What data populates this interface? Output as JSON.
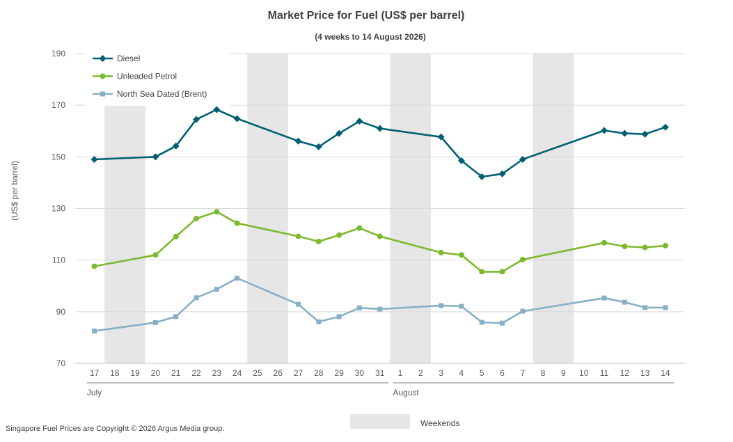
{
  "chart_data": {
    "type": "line",
    "title": "Market Price for Fuel (US$ per barrel)",
    "subtitle": "(4 weeks to 14 August 2026)",
    "ylabel": "(US$ per barrel)",
    "ylim": [
      70,
      190
    ],
    "yticks": [
      70,
      90,
      110,
      130,
      150,
      170,
      190
    ],
    "grid": true,
    "legend_position": "top-left",
    "categories": [
      "17",
      "18",
      "19",
      "20",
      "21",
      "22",
      "23",
      "24",
      "25",
      "26",
      "27",
      "28",
      "29",
      "30",
      "31",
      "1",
      "2",
      "3",
      "4",
      "5",
      "6",
      "7",
      "8",
      "9",
      "10",
      "11",
      "12",
      "13",
      "14"
    ],
    "months": [
      {
        "label": "July",
        "start": 0,
        "end": 14
      },
      {
        "label": "August",
        "start": 15,
        "end": 28
      }
    ],
    "weekends": [
      [
        1,
        2
      ],
      [
        8,
        9
      ],
      [
        15,
        16
      ],
      [
        22,
        23
      ]
    ],
    "weekend_label": "Weekends",
    "series": [
      {
        "name": "Diesel",
        "color": "#005F73",
        "marker": "diamond",
        "values": [
          149.0,
          null,
          null,
          150.0,
          154.2,
          164.5,
          168.3,
          164.8,
          null,
          null,
          156.1,
          153.9,
          159.1,
          163.8,
          161.0,
          null,
          null,
          157.7,
          148.5,
          142.3,
          143.4,
          149.0,
          null,
          null,
          null,
          160.2,
          159.1,
          158.8,
          161.5
        ]
      },
      {
        "name": "Unleaded Petrol",
        "color": "#7DB92E",
        "marker": "circle",
        "values": [
          107.6,
          null,
          null,
          112.0,
          119.1,
          126.1,
          128.7,
          124.3,
          null,
          null,
          119.2,
          117.2,
          119.7,
          122.4,
          119.2,
          null,
          null,
          112.9,
          112.0,
          105.5,
          105.5,
          110.2,
          null,
          null,
          null,
          116.7,
          115.3,
          114.9,
          115.6
        ]
      },
      {
        "name": "North Sea Dated (Brent)",
        "color": "#87B0C6",
        "marker": "square",
        "values": [
          82.5,
          null,
          null,
          85.8,
          88.1,
          95.4,
          98.7,
          103.0,
          null,
          null,
          92.9,
          86.1,
          88.1,
          91.5,
          91.0,
          null,
          null,
          92.4,
          92.1,
          85.9,
          85.6,
          90.2,
          null,
          null,
          null,
          95.3,
          93.7,
          91.6,
          91.6
        ]
      }
    ]
  },
  "footer": {
    "copyright": "Singapore Fuel Prices are Copyright © 2026 Argus Media group."
  }
}
